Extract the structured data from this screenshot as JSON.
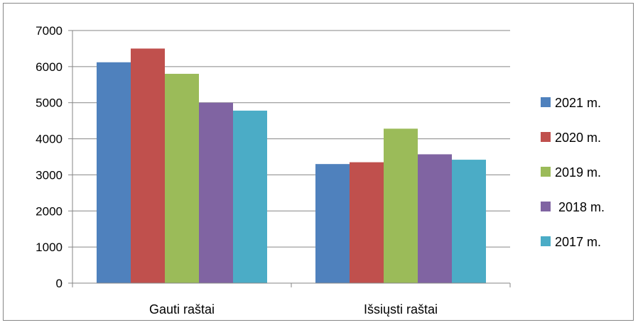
{
  "chart_data": {
    "type": "bar",
    "categories": [
      "Gauti raštai",
      "Išsiųsti raštai"
    ],
    "series": [
      {
        "name": "2021 m.",
        "values": [
          6120,
          3300
        ],
        "color": "#4f81bd"
      },
      {
        "name": "2020 m.",
        "values": [
          6500,
          3350
        ],
        "color": "#c0504d"
      },
      {
        "name": "2019 m.",
        "values": [
          5800,
          4280
        ],
        "color": "#9bbb59"
      },
      {
        "name": " 2018 m.",
        "values": [
          5000,
          3570
        ],
        "color": "#8064a2"
      },
      {
        "name": "2017 m.",
        "values": [
          4780,
          3420
        ],
        "color": "#4bacc6"
      }
    ],
    "ylim": [
      0,
      7000
    ],
    "yticks": [
      0,
      1000,
      2000,
      3000,
      4000,
      5000,
      6000,
      7000
    ],
    "grid": true,
    "legend": "right"
  }
}
